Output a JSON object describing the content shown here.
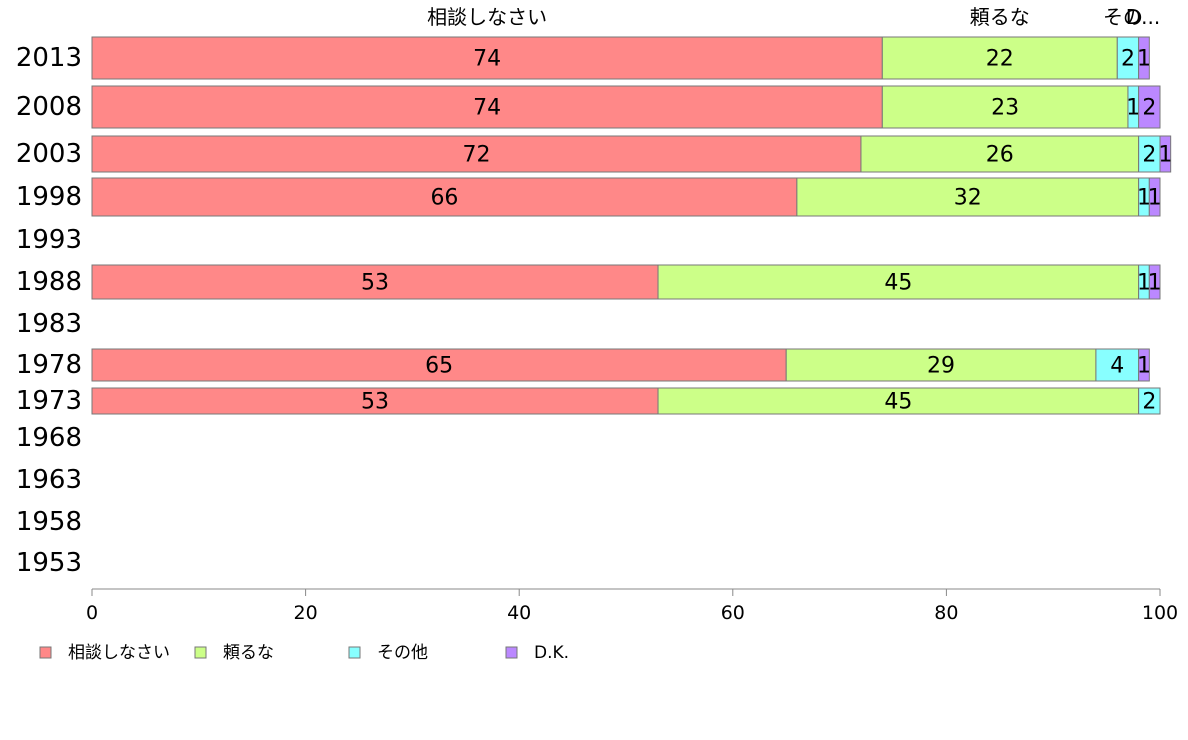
{
  "chart_data": {
    "type": "bar",
    "orientation": "horizontal",
    "stacked": true,
    "categories": [
      "2013",
      "2008",
      "2003",
      "1998",
      "1993",
      "1988",
      "1983",
      "1978",
      "1973",
      "1968",
      "1963",
      "1958",
      "1953"
    ],
    "series": [
      {
        "name": "相談しなさい",
        "color": "#ff8888",
        "values": [
          74,
          74,
          72,
          66,
          null,
          53,
          null,
          65,
          53,
          null,
          null,
          null,
          null
        ]
      },
      {
        "name": "頼るな",
        "color": "#ccff88",
        "values": [
          22,
          23,
          26,
          32,
          null,
          45,
          null,
          29,
          45,
          null,
          null,
          null,
          null
        ]
      },
      {
        "name": "その他",
        "color": "#88ffff",
        "values": [
          2,
          1,
          2,
          1,
          null,
          1,
          null,
          4,
          2,
          null,
          null,
          null,
          null
        ]
      },
      {
        "name": "D.K.",
        "color": "#bb88ff",
        "values": [
          1,
          2,
          1,
          1,
          null,
          1,
          null,
          1,
          0,
          null,
          null,
          null,
          null
        ]
      }
    ],
    "top_labels": [
      "相談しなさい",
      "頼るな",
      "その",
      "D..."
    ],
    "xlim": [
      0,
      100
    ],
    "xticks": [
      0,
      20,
      40,
      60,
      80,
      100
    ],
    "legend_position": "bottom-left",
    "grid": false
  }
}
